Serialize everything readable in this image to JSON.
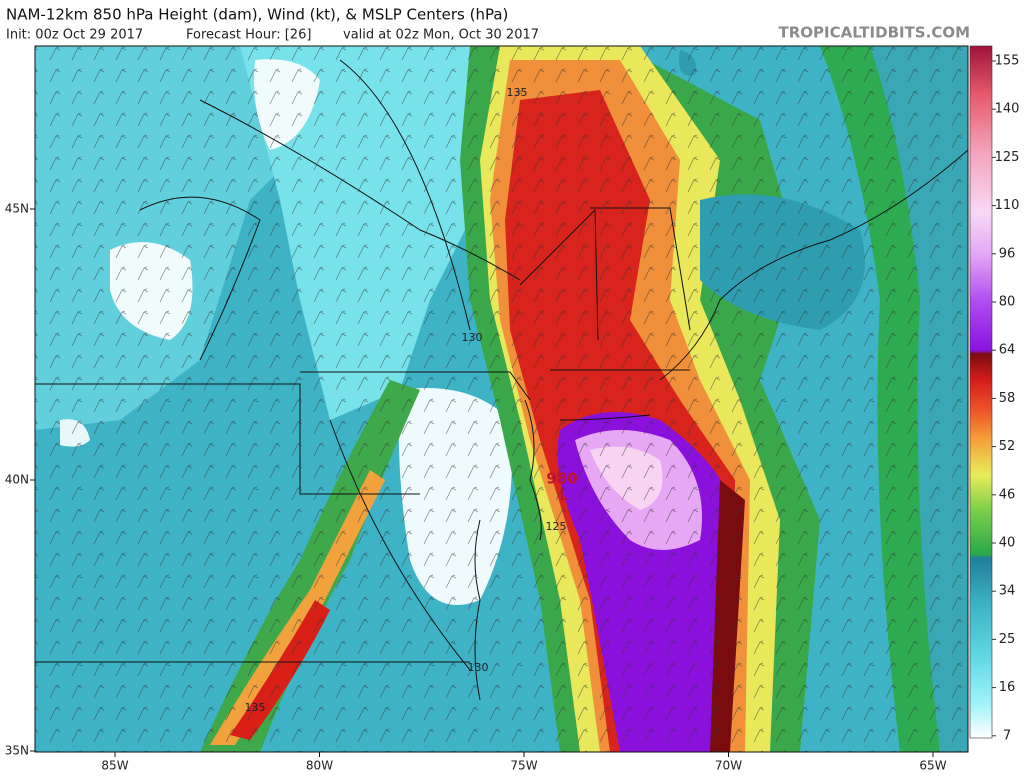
{
  "header": {
    "title": "NAM-12km 850 hPa Height (dam), Wind (kt), & MSLP Centers (hPa)",
    "init": "Init: 00z Oct 29 2017",
    "forecast_hour": "Forecast Hour: [26]",
    "valid": "valid at 02z Mon, Oct 30 2017",
    "source": "TROPICALTIDBITS.COM"
  },
  "axes": {
    "longitudes": [
      "85W",
      "80W",
      "75W",
      "70W",
      "65W"
    ],
    "latitudes": [
      "45N",
      "40N",
      "35N"
    ]
  },
  "colorbar": {
    "labels": [
      "155",
      "140",
      "125",
      "110",
      "96",
      "80",
      "64",
      "58",
      "52",
      "46",
      "40",
      "34",
      "25",
      "16",
      "7"
    ]
  },
  "contour_labels": [
    "135",
    "130",
    "125",
    "130",
    "135"
  ],
  "pressure_center": {
    "value": "980",
    "symbol": "L"
  }
}
